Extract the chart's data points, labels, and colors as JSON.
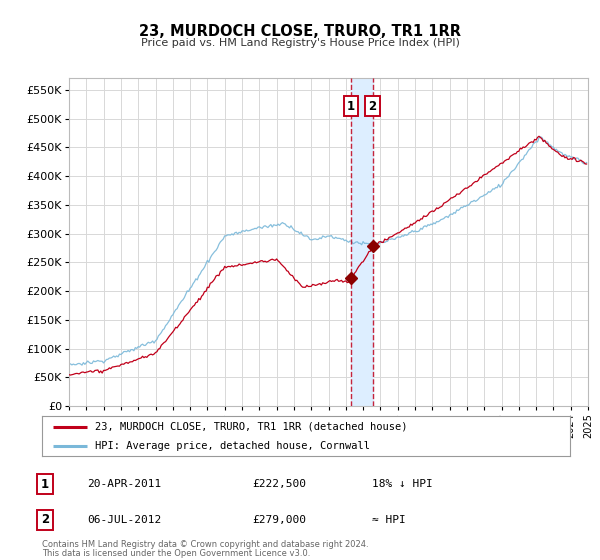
{
  "title": "23, MURDOCH CLOSE, TRURO, TR1 1RR",
  "subtitle": "Price paid vs. HM Land Registry's House Price Index (HPI)",
  "legend_line1": "23, MURDOCH CLOSE, TRURO, TR1 1RR (detached house)",
  "legend_line2": "HPI: Average price, detached house, Cornwall",
  "footer1": "Contains HM Land Registry data © Crown copyright and database right 2024.",
  "footer2": "This data is licensed under the Open Government Licence v3.0.",
  "sale1_label": "1",
  "sale1_date": "20-APR-2011",
  "sale1_price": "£222,500",
  "sale1_hpi": "18% ↓ HPI",
  "sale2_label": "2",
  "sale2_date": "06-JUL-2012",
  "sale2_price": "£279,000",
  "sale2_hpi": "≈ HPI",
  "sale1_year": 2011.3,
  "sale2_year": 2012.55,
  "sale1_value": 222500,
  "sale2_value": 279000,
  "hpi_color": "#7ab8d9",
  "price_color": "#c0001a",
  "sale_dot_color": "#8b0000",
  "highlight_color": "#ddeeff",
  "grid_color": "#d8d8d8",
  "background_color": "#ffffff",
  "ylim_min": 0,
  "ylim_max": 570000,
  "xlim_min": 1995,
  "xlim_max": 2025
}
